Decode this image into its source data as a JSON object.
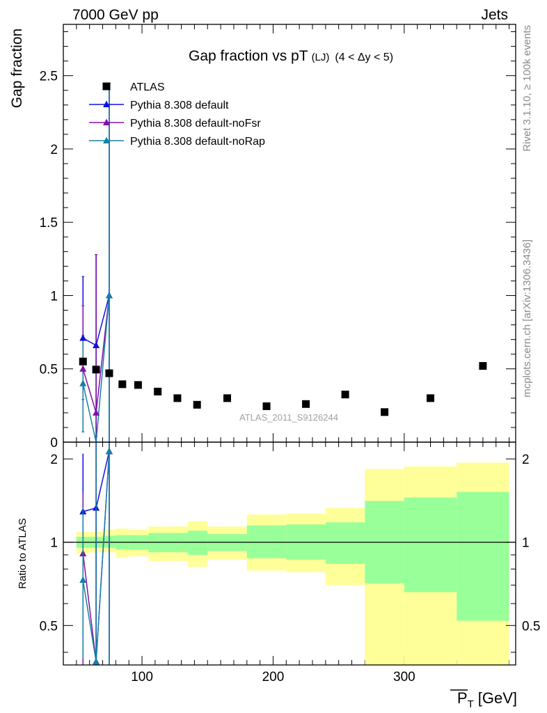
{
  "header": {
    "left": "7000 GeV pp",
    "right": "Jets"
  },
  "side": {
    "rivet": "Rivet 3.1.10, ≥ 100k events",
    "mcplots": "mcplots.cern.ch [arXiv:1306.3436]"
  },
  "chart_data": [
    {
      "type": "scatter",
      "title": "Gap fraction vs pT",
      "title_sub": "(LJ)",
      "title_range": "(4 < Δy < 5)",
      "ylabel": "Gap fraction",
      "watermark": "ATLAS_2011_S9126244",
      "xlim": [
        40,
        385
      ],
      "ylim": [
        0,
        2.85
      ],
      "yticks": [
        0,
        0.5,
        1,
        1.5,
        2,
        2.5
      ],
      "ytick_labels": [
        "0",
        "0.5",
        "1",
        "1.5",
        "2",
        "2.5"
      ],
      "legend_position": "top-left",
      "series": [
        {
          "name": "ATLAS",
          "color": "#000000",
          "marker": "square",
          "x": [
            55,
            65,
            75,
            85,
            97,
            112,
            127,
            142,
            165,
            195,
            225,
            255,
            285,
            320,
            360
          ],
          "y": [
            0.55,
            0.495,
            0.47,
            0.395,
            0.39,
            0.345,
            0.3,
            0.255,
            0.3,
            0.245,
            0.26,
            0.325,
            0.205,
            0.3,
            0.52
          ]
        },
        {
          "name": "Pythia 8.308 default",
          "color": "#1010dd",
          "marker": "triangle",
          "x": [
            55,
            65,
            75
          ],
          "y": [
            0.71,
            0.66,
            1.0
          ],
          "err": [
            0.42,
            0.62,
            1.45
          ]
        },
        {
          "name": "Pythia 8.308 default-noFsr",
          "color": "#8010a8",
          "marker": "triangle",
          "x": [
            55,
            65,
            75
          ],
          "y": [
            0.5,
            0.2,
            1.0
          ],
          "err": [
            0.43,
            1.08,
            1.45
          ]
        },
        {
          "name": "Pythia 8.308 default-noRap",
          "color": "#1580a8",
          "marker": "triangle",
          "x": [
            55,
            65,
            75
          ],
          "y": [
            0.4,
            0.0,
            1.0
          ],
          "err": [
            0.33,
            0.0,
            1.45
          ]
        }
      ]
    },
    {
      "type": "area",
      "ylabel": "Ratio to ATLAS",
      "xlabel": "P",
      "xlabel_sub": "T",
      "xlabel_unit": "[GeV]",
      "xlim": [
        40,
        385
      ],
      "ylim": [
        0.36,
        2.3
      ],
      "xticks": [
        100,
        200,
        300
      ],
      "xtick_labels": [
        "100",
        "200",
        "300"
      ],
      "yticks": [
        0.5,
        1,
        2
      ],
      "ytick_labels": [
        "0.5",
        "1",
        "2"
      ],
      "bands": {
        "edges": [
          50,
          60,
          70,
          80,
          90,
          105,
          120,
          135,
          150,
          180,
          210,
          240,
          270,
          300,
          340,
          380
        ],
        "yellow_lo": [
          0.91,
          0.92,
          0.92,
          0.88,
          0.89,
          0.855,
          0.855,
          0.815,
          0.865,
          0.79,
          0.78,
          0.7,
          0.36,
          0.36,
          0.36
        ],
        "yellow_hi": [
          1.09,
          1.09,
          1.11,
          1.12,
          1.11,
          1.14,
          1.14,
          1.19,
          1.14,
          1.26,
          1.27,
          1.33,
          1.84,
          1.88,
          1.94
        ],
        "green_lo": [
          0.955,
          0.955,
          0.955,
          0.94,
          0.94,
          0.92,
          0.92,
          0.9,
          0.93,
          0.875,
          0.865,
          0.835,
          0.71,
          0.66,
          0.52
        ],
        "green_hi": [
          1.045,
          1.045,
          1.055,
          1.06,
          1.06,
          1.08,
          1.08,
          1.1,
          1.07,
          1.15,
          1.16,
          1.18,
          1.41,
          1.45,
          1.52
        ]
      },
      "series": [
        {
          "name": "Pythia 8.308 default",
          "color": "#1010dd",
          "x": [
            55,
            65,
            75
          ],
          "y": [
            1.29,
            1.33,
            2.13
          ],
          "err_lo": [
            0.8,
            1.0,
            1.8
          ],
          "err_hi": [
            0.8,
            1.0,
            1.8
          ]
        },
        {
          "name": "Pythia 8.308 default-noFsr",
          "color": "#8010a8",
          "x": [
            55,
            65,
            75
          ],
          "y": [
            0.91,
            0.37,
            2.13
          ],
          "err_lo": [
            0.55,
            0.05,
            1.8
          ],
          "err_hi": [
            0.6,
            1.95,
            1.8
          ]
        },
        {
          "name": "Pythia 8.308 default-noRap",
          "color": "#1580a8",
          "x": [
            55,
            65,
            75
          ],
          "y": [
            0.73,
            0.37,
            2.13
          ],
          "err_lo": [
            0.35,
            0.05,
            1.8
          ],
          "err_hi": [
            0.6,
            1.95,
            1.8
          ]
        }
      ]
    }
  ]
}
